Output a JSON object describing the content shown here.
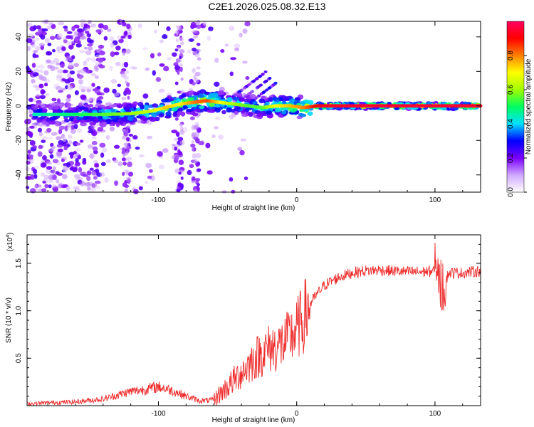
{
  "title": "C2E1.2026.025.08.32.E13",
  "chart_data": [
    {
      "type": "heatmap",
      "name": "spectrogram",
      "xlabel": "Height of straight line (km)",
      "ylabel": "Frequency (Hz)",
      "xlim": [
        -195,
        133
      ],
      "ylim": [
        -50,
        49
      ],
      "xticks": [
        -100,
        0,
        100
      ],
      "xtick_labels": [
        "-100",
        "0",
        "100"
      ],
      "yticks": [
        -40,
        -20,
        0,
        20,
        40
      ],
      "ytick_labels": [
        "-40",
        "-20",
        "0",
        "20",
        "40"
      ],
      "colorbar": {
        "label": "Normalized spectral amplitude",
        "range": [
          0,
          1
        ],
        "ticks": [
          0,
          0.2,
          0.4,
          0.6,
          0.8
        ],
        "tick_labels": [
          "0.0",
          "0.2",
          "0.4",
          "0.6",
          "0.8"
        ],
        "colors": [
          "#ffffff",
          "#d0a8ff",
          "#7a00ff",
          "#0000ff",
          "#00e0ff",
          "#00ff60",
          "#a0ff00",
          "#ffff00",
          "#ff8000",
          "#ff0000",
          "#ff0060"
        ]
      },
      "ridge": {
        "x": [
          -185,
          -160,
          -140,
          -120,
          -105,
          -95,
          -85,
          -75,
          -65,
          -55,
          -45,
          -35,
          -25,
          -15,
          -5,
          5,
          15,
          40,
          80,
          133
        ],
        "freq": [
          -5,
          -5,
          -5,
          -4.5,
          -3,
          -1,
          1,
          2,
          3,
          2,
          1,
          0,
          -1,
          0,
          0,
          -1,
          0,
          0,
          0,
          0
        ],
        "amplitude": [
          0.45,
          0.5,
          0.55,
          0.6,
          0.65,
          0.75,
          0.7,
          0.8,
          0.85,
          0.7,
          0.6,
          0.55,
          0.55,
          0.7,
          0.75,
          0.8,
          0.92,
          0.95,
          0.95,
          0.95
        ]
      },
      "branch": {
        "x": [
          -50,
          -45,
          -40,
          -35,
          -30,
          -25,
          -22
        ],
        "freq": [
          3,
          6,
          9,
          12,
          15,
          18,
          20
        ]
      }
    },
    {
      "type": "line",
      "name": "snr",
      "xlabel": "Height of straight line (km)",
      "ylabel": "SNR (10 * v/v)",
      "y_multiplier": "(x10",
      "y_multiplier_exp": "4",
      "y_multiplier_close": ")",
      "xlim": [
        -195,
        133
      ],
      "ylim": [
        0,
        1.8
      ],
      "xticks": [
        -100,
        0,
        100
      ],
      "xtick_labels": [
        "-100",
        "0",
        "100"
      ],
      "yticks": [
        0.5,
        1.0,
        1.5
      ],
      "ytick_labels": [
        "0.5",
        "1.0",
        "1.5"
      ],
      "color": "#ee2a2a",
      "series": [
        {
          "name": "SNR",
          "x": [
            -195,
            -180,
            -160,
            -140,
            -130,
            -120,
            -110,
            -100,
            -90,
            -80,
            -70,
            -60,
            -50,
            -40,
            -30,
            -25,
            -20,
            -15,
            -10,
            -5,
            0,
            5,
            10,
            15,
            20,
            30,
            40,
            50,
            60,
            70,
            80,
            90,
            100,
            103,
            106,
            110,
            120,
            133
          ],
          "y": [
            0.02,
            0.03,
            0.04,
            0.07,
            0.11,
            0.15,
            0.17,
            0.2,
            0.16,
            0.1,
            0.05,
            0.06,
            0.2,
            0.35,
            0.5,
            0.55,
            0.6,
            0.62,
            0.65,
            0.72,
            0.8,
            0.92,
            1.08,
            1.18,
            1.27,
            1.35,
            1.4,
            1.42,
            1.43,
            1.42,
            1.41,
            1.41,
            1.42,
            1.32,
            1.25,
            1.4,
            1.4,
            1.42
          ]
        }
      ]
    }
  ]
}
